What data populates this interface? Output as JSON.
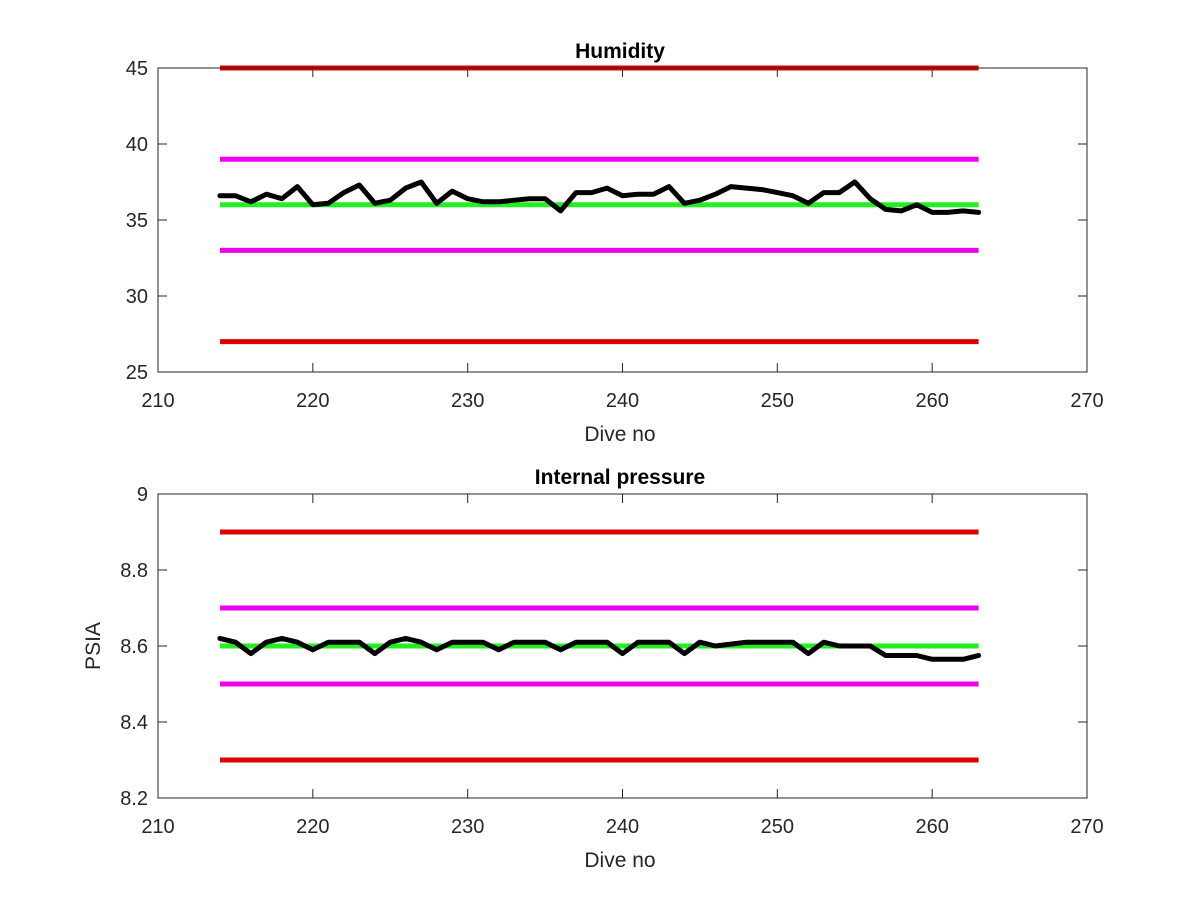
{
  "chart_data": [
    {
      "type": "line",
      "title": "Humidity",
      "xlabel": "Dive no",
      "ylabel": "",
      "xlim": [
        210,
        270
      ],
      "ylim": [
        25,
        45
      ],
      "xticks": [
        "210",
        "220",
        "230",
        "240",
        "250",
        "260",
        "270"
      ],
      "yticks": [
        "25",
        "30",
        "35",
        "40",
        "45"
      ],
      "grid": false,
      "reference_lines": [
        {
          "y": 45,
          "x": [
            214,
            263
          ],
          "color": "#dd0000"
        },
        {
          "y": 39,
          "x": [
            214,
            263
          ],
          "color": "#ee00ee"
        },
        {
          "y": 36,
          "x": [
            214,
            263
          ],
          "color": "#22ee22"
        },
        {
          "y": 33,
          "x": [
            214,
            263
          ],
          "color": "#ee00ee"
        },
        {
          "y": 27,
          "x": [
            214,
            263
          ],
          "color": "#dd0000"
        }
      ],
      "series": [
        {
          "color": "#000000",
          "x": [
            214,
            215,
            216,
            217,
            218,
            219,
            220,
            221,
            222,
            223,
            224,
            225,
            226,
            227,
            228,
            229,
            230,
            231,
            232,
            233,
            234,
            235,
            236,
            237,
            238,
            239,
            240,
            241,
            242,
            243,
            244,
            245,
            246,
            247,
            248,
            249,
            250,
            251,
            252,
            253,
            254,
            255,
            256,
            257,
            258,
            259,
            260,
            261,
            262,
            263
          ],
          "values": [
            36.6,
            36.6,
            36.2,
            36.7,
            36.4,
            37.2,
            36.0,
            36.1,
            36.8,
            37.3,
            36.1,
            36.3,
            37.1,
            37.5,
            36.1,
            36.9,
            36.4,
            36.2,
            36.2,
            36.3,
            36.4,
            36.4,
            35.6,
            36.8,
            36.8,
            37.1,
            36.6,
            36.7,
            36.7,
            37.2,
            36.1,
            36.3,
            36.7,
            37.2,
            37.1,
            37.0,
            36.8,
            36.6,
            36.1,
            36.8,
            36.8,
            37.5,
            36.4,
            35.7,
            35.6,
            36.0,
            35.5,
            35.5,
            35.6,
            35.5
          ]
        }
      ]
    },
    {
      "type": "line",
      "title": "Internal pressure",
      "xlabel": "Dive no",
      "ylabel": "PSIA",
      "xlim": [
        210,
        270
      ],
      "ylim": [
        8.2,
        9
      ],
      "xticks": [
        "210",
        "220",
        "230",
        "240",
        "250",
        "260",
        "270"
      ],
      "yticks": [
        "8.2",
        "8.4",
        "8.6",
        "8.8",
        "9"
      ],
      "grid": false,
      "reference_lines": [
        {
          "y": 8.9,
          "x": [
            214,
            263
          ],
          "color": "#dd0000"
        },
        {
          "y": 8.7,
          "x": [
            214,
            263
          ],
          "color": "#ee00ee"
        },
        {
          "y": 8.6,
          "x": [
            214,
            263
          ],
          "color": "#22ee22"
        },
        {
          "y": 8.5,
          "x": [
            214,
            263
          ],
          "color": "#ee00ee"
        },
        {
          "y": 8.3,
          "x": [
            214,
            263
          ],
          "color": "#dd0000"
        }
      ],
      "series": [
        {
          "color": "#000000",
          "x": [
            214,
            215,
            216,
            217,
            218,
            219,
            220,
            221,
            222,
            223,
            224,
            225,
            226,
            227,
            228,
            229,
            230,
            231,
            232,
            233,
            234,
            235,
            236,
            237,
            238,
            239,
            240,
            241,
            242,
            243,
            244,
            245,
            246,
            247,
            248,
            249,
            250,
            251,
            252,
            253,
            254,
            255,
            256,
            257,
            258,
            259,
            260,
            261,
            262,
            263
          ],
          "values": [
            8.62,
            8.61,
            8.58,
            8.61,
            8.62,
            8.61,
            8.59,
            8.61,
            8.61,
            8.61,
            8.58,
            8.61,
            8.62,
            8.61,
            8.59,
            8.61,
            8.61,
            8.61,
            8.59,
            8.61,
            8.61,
            8.61,
            8.59,
            8.61,
            8.61,
            8.61,
            8.58,
            8.61,
            8.61,
            8.61,
            8.58,
            8.61,
            8.6,
            8.605,
            8.61,
            8.61,
            8.61,
            8.61,
            8.58,
            8.61,
            8.6,
            8.6,
            8.6,
            8.575,
            8.575,
            8.575,
            8.565,
            8.565,
            8.565,
            8.575
          ]
        }
      ]
    }
  ]
}
